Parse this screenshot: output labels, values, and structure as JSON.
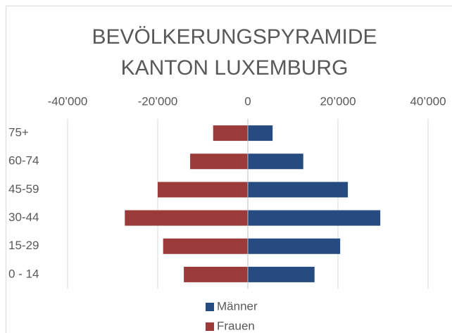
{
  "chart_data": {
    "type": "pyramid",
    "title": [
      "BEVÖLKERUNGSPYRAMIDE",
      "KANTON LUXEMBURG"
    ],
    "categories": [
      "75+",
      "60-74",
      "45-59",
      "30-44",
      "15-29",
      "0 - 14"
    ],
    "series": [
      {
        "name": "Männer",
        "color": "#254b80",
        "values": [
          5500,
          12300,
          22200,
          29400,
          20500,
          14800
        ]
      },
      {
        "name": "Frauen",
        "color": "#9a3b3a",
        "values": [
          -7700,
          -12800,
          -20000,
          -27300,
          -18800,
          -14200
        ]
      }
    ],
    "xlim": [
      -40000,
      40000
    ],
    "xticks": [
      {
        "value": -40000,
        "label": "-40’000"
      },
      {
        "value": -20000,
        "label": "-20’000"
      },
      0,
      {
        "value": 20000,
        "label": "20’000"
      },
      {
        "value": 40000,
        "label": "40’000"
      }
    ],
    "grid": true,
    "legend": "bottom"
  }
}
